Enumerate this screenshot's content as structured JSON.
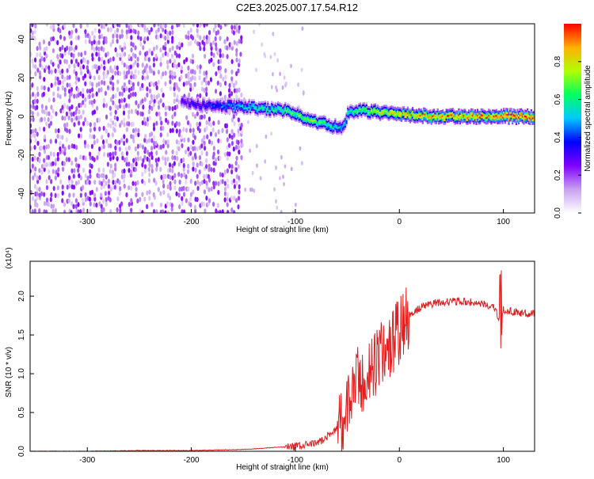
{
  "title": "C2E3.2025.007.17.54.R12",
  "colors": {
    "axis": "#000000",
    "snr_line": "#e02020",
    "colormap": [
      "#ffffff",
      "#c8a0f0",
      "#7f00ff",
      "#0000ff",
      "#00c8ff",
      "#00ff60",
      "#b0ff00",
      "#ffb000",
      "#ff0000"
    ]
  },
  "chart_data": [
    {
      "type": "heatmap",
      "xlabel": "Height of straight line (km)",
      "ylabel": "Frequency (Hz)",
      "xlim": [
        -355,
        130
      ],
      "ylim": [
        -50,
        48
      ],
      "xticks": [
        -300,
        -200,
        -100,
        0,
        100
      ],
      "xtick_labels": [
        "-300",
        "-200",
        "-100",
        "0",
        "100"
      ],
      "yticks": [
        -40,
        -20,
        0,
        20,
        40
      ],
      "ytick_labels": [
        "-40",
        "-20",
        "0",
        "20",
        "40"
      ],
      "colorbar": {
        "label": "Normalized spectral amplitude",
        "range": [
          0,
          1
        ],
        "ticks": [
          0.0,
          0.2,
          0.4,
          0.6,
          0.8
        ],
        "tick_labels": [
          "0.0",
          "0.2",
          "0.4",
          "0.6",
          "0.8"
        ]
      },
      "noise_region": {
        "x_range": [
          -355,
          -152
        ],
        "y_range": [
          -50,
          48
        ],
        "amplitude": [
          0.05,
          0.25
        ]
      },
      "ridge": [
        {
          "x": -210,
          "y": 8,
          "amp": 0.3
        },
        {
          "x": -195,
          "y": 6,
          "amp": 0.35
        },
        {
          "x": -150,
          "y": 5,
          "amp": 0.55
        },
        {
          "x": -130,
          "y": 4,
          "amp": 0.6
        },
        {
          "x": -110,
          "y": 3,
          "amp": 0.65
        },
        {
          "x": -95,
          "y": 0,
          "amp": 0.7
        },
        {
          "x": -80,
          "y": -3,
          "amp": 0.7
        },
        {
          "x": -65,
          "y": -5,
          "amp": 0.6
        },
        {
          "x": -55,
          "y": -6,
          "amp": 0.55
        },
        {
          "x": -50,
          "y": 2,
          "amp": 0.6
        },
        {
          "x": -35,
          "y": 3,
          "amp": 0.7
        },
        {
          "x": -20,
          "y": 2,
          "amp": 0.8
        },
        {
          "x": 0,
          "y": 1,
          "amp": 0.85
        },
        {
          "x": 30,
          "y": 0,
          "amp": 0.9
        },
        {
          "x": 90,
          "y": 0,
          "amp": 0.95
        },
        {
          "x": 130,
          "y": 0,
          "amp": 1.0
        }
      ]
    },
    {
      "type": "line",
      "xlabel": "Height of straight line (km)",
      "ylabel": "SNR (10 * v/v)",
      "scale_label": "(x10⁴)",
      "xlim": [
        -355,
        130
      ],
      "ylim": [
        0,
        2.45
      ],
      "xticks": [
        -300,
        -200,
        -100,
        0,
        100
      ],
      "xtick_labels": [
        "-300",
        "-200",
        "-100",
        "0",
        "100"
      ],
      "yticks": [
        0.0,
        0.5,
        1.0,
        1.5,
        2.0
      ],
      "ytick_labels": [
        "0.0",
        "0.5",
        "1.0",
        "1.5",
        "2.0"
      ],
      "series": [
        {
          "x": [
            -355,
            -300,
            -250,
            -200,
            -160,
            -140,
            -120,
            -100,
            -90,
            -80,
            -70,
            -60,
            -50,
            -45,
            -40,
            -35,
            -30,
            -20,
            -10,
            0,
            10,
            20,
            30,
            40,
            50,
            60,
            70,
            80,
            90,
            97,
            100,
            110,
            120,
            130
          ],
          "y": [
            0.0,
            0.0,
            0.01,
            0.01,
            0.02,
            0.03,
            0.05,
            0.06,
            0.08,
            0.1,
            0.18,
            0.3,
            0.5,
            0.8,
            0.9,
            0.85,
            1.0,
            1.2,
            1.35,
            1.55,
            1.75,
            1.85,
            1.9,
            1.92,
            1.93,
            1.93,
            1.92,
            1.9,
            1.86,
            1.7,
            1.82,
            1.8,
            1.78,
            1.78
          ]
        }
      ]
    }
  ]
}
